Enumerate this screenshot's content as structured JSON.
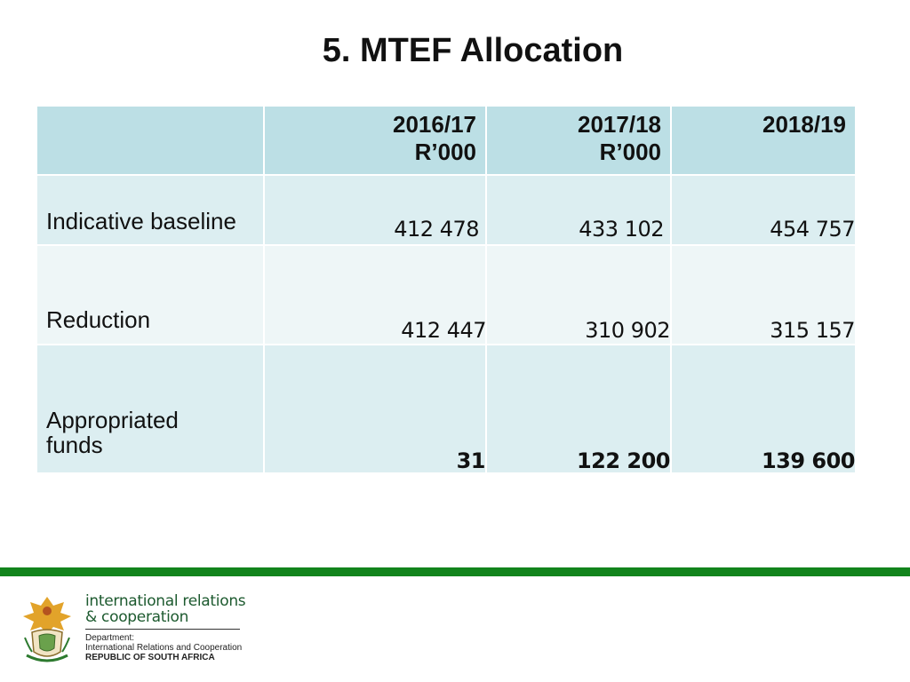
{
  "slide": {
    "title": "5. MTEF Allocation"
  },
  "table": {
    "headers": [
      {
        "year": "2016/17",
        "unit": "R’000"
      },
      {
        "year": "2017/18",
        "unit": "R’000"
      },
      {
        "year": "2018/19",
        "unit": ""
      }
    ],
    "rows": [
      {
        "label": "Indicative baseline",
        "values": [
          "412 478",
          "433 102",
          "454 757"
        ],
        "bold": false
      },
      {
        "label": "Reduction",
        "values": [
          "412 447",
          "310 902",
          "315 157"
        ],
        "bold": false
      },
      {
        "label_lines": [
          "Appropriated",
          "funds"
        ],
        "values": [
          "31",
          "122 200",
          "139 600"
        ],
        "bold": true
      }
    ]
  },
  "footer": {
    "brand_line1": "international relations",
    "brand_line2": "& cooperation",
    "dept_label": "Department:",
    "dept_name": "International Relations and Cooperation",
    "country": "REPUBLIC OF SOUTH AFRICA"
  },
  "colors": {
    "header_bg": "#bcdfe5",
    "row_bg_dark": "#dceef1",
    "row_bg_light": "#eef6f7",
    "green_bar": "#12841c",
    "brand_text": "#1d5a2f"
  }
}
